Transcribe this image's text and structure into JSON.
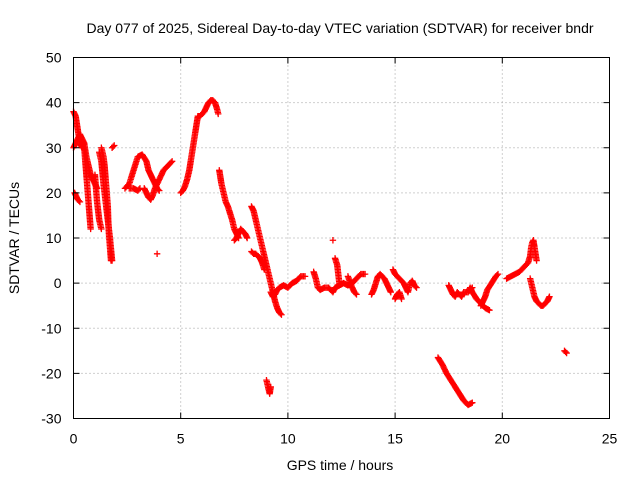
{
  "chart_data": {
    "type": "scatter",
    "title": "Day 077 of 2025, Sidereal Day-to-day VTEC variation (SDTVAR) for receiver bndr",
    "xlabel": "GPS time / hours",
    "ylabel": "SDTVAR / TECUs",
    "xlim": [
      0,
      25
    ],
    "ylim": [
      -30,
      50
    ],
    "x_ticks": [
      0,
      5,
      10,
      15,
      20,
      25
    ],
    "y_ticks": [
      -30,
      -20,
      -10,
      0,
      10,
      20,
      30,
      40,
      50
    ],
    "x_tick_labels": [
      "0",
      "5",
      "10",
      "15",
      "20",
      "25"
    ],
    "y_tick_labels": [
      "-30",
      "-20",
      "-10",
      "0",
      "10",
      "20",
      "30",
      "40",
      "50"
    ],
    "grid": true,
    "legend": "none",
    "marker": "plus",
    "color": "#ff0000",
    "series": [
      {
        "segments": [
          [
            [
              0.0,
              38
            ],
            [
              0.1,
              37
            ],
            [
              0.2,
              34
            ],
            [
              0.3,
              31
            ],
            [
              0.4,
              30
            ],
            [
              0.5,
              31
            ],
            [
              0.6,
              28
            ],
            [
              0.7,
              26
            ],
            [
              0.8,
              24
            ],
            [
              0.9,
              23
            ],
            [
              1.0,
              22
            ],
            [
              1.1,
              21
            ]
          ],
          [
            [
              0.05,
              20
            ],
            [
              0.1,
              19.5
            ],
            [
              0.2,
              18.5
            ],
            [
              0.3,
              18
            ]
          ],
          [
            [
              0.0,
              30
            ],
            [
              0.1,
              31
            ],
            [
              0.2,
              32
            ],
            [
              0.3,
              33
            ],
            [
              0.4,
              32
            ],
            [
              0.5,
              31
            ]
          ],
          [
            [
              0.5,
              30
            ],
            [
              0.55,
              27
            ],
            [
              0.6,
              24
            ],
            [
              0.65,
              21
            ],
            [
              0.7,
              18
            ],
            [
              0.75,
              15
            ],
            [
              0.8,
              12
            ]
          ],
          [
            [
              1.0,
              24
            ],
            [
              1.05,
              21
            ],
            [
              1.1,
              18
            ],
            [
              1.15,
              16
            ],
            [
              1.2,
              14
            ],
            [
              1.3,
              12
            ]
          ],
          [
            [
              1.3,
              30
            ],
            [
              1.35,
              29
            ],
            [
              1.4,
              28
            ],
            [
              1.45,
              26
            ],
            [
              1.5,
              23
            ],
            [
              1.55,
              20
            ],
            [
              1.6,
              17
            ],
            [
              1.62,
              14
            ],
            [
              1.65,
              11
            ],
            [
              1.7,
              8
            ],
            [
              1.75,
              5
            ]
          ],
          [
            [
              1.2,
              29
            ],
            [
              1.3,
              27
            ],
            [
              1.4,
              22
            ],
            [
              1.5,
              18
            ],
            [
              1.6,
              14
            ],
            [
              1.7,
              10
            ],
            [
              1.8,
              5
            ]
          ],
          [
            [
              1.8,
              30
            ],
            [
              1.9,
              30.5
            ]
          ],
          [
            [
              2.4,
              21
            ],
            [
              2.6,
              22
            ],
            [
              2.8,
              25
            ],
            [
              3.0,
              28
            ],
            [
              3.2,
              28.5
            ],
            [
              3.4,
              27
            ],
            [
              3.5,
              25
            ],
            [
              3.6,
              24
            ],
            [
              3.7,
              23
            ],
            [
              3.8,
              22
            ],
            [
              3.9,
              21
            ],
            [
              4.0,
              20.5
            ]
          ],
          [
            [
              2.6,
              21
            ],
            [
              2.8,
              21
            ],
            [
              3.0,
              20.5
            ],
            [
              3.1,
              21
            ]
          ],
          [
            [
              3.3,
              21
            ],
            [
              3.4,
              20
            ],
            [
              3.5,
              19
            ],
            [
              3.6,
              18.5
            ],
            [
              3.7,
              19.5
            ],
            [
              3.8,
              21
            ],
            [
              4.0,
              23
            ],
            [
              4.2,
              25
            ],
            [
              4.4,
              26
            ],
            [
              4.6,
              27
            ]
          ],
          [
            [
              3.9,
              6.5
            ]
          ],
          [
            [
              5.0,
              20
            ],
            [
              5.1,
              20.5
            ],
            [
              5.2,
              21.5
            ],
            [
              5.3,
              23
            ],
            [
              5.4,
              25
            ],
            [
              5.5,
              28
            ],
            [
              5.6,
              31
            ],
            [
              5.7,
              34
            ],
            [
              5.8,
              37
            ],
            [
              5.9,
              37
            ],
            [
              6.0,
              37.5
            ],
            [
              6.1,
              38
            ],
            [
              6.2,
              39
            ],
            [
              6.3,
              40
            ],
            [
              6.4,
              40.5
            ],
            [
              6.5,
              40.5
            ],
            [
              6.6,
              40
            ],
            [
              6.7,
              38.5
            ],
            [
              6.75,
              37.5
            ]
          ],
          [
            [
              6.8,
              25
            ],
            [
              6.85,
              23.5
            ],
            [
              6.9,
              22
            ],
            [
              7.0,
              20
            ],
            [
              7.1,
              18
            ],
            [
              7.2,
              17
            ],
            [
              7.3,
              15.5
            ],
            [
              7.4,
              14
            ],
            [
              7.5,
              12
            ],
            [
              7.6,
              11
            ],
            [
              7.7,
              10
            ]
          ],
          [
            [
              7.5,
              9.5
            ],
            [
              7.6,
              10
            ],
            [
              7.7,
              11
            ],
            [
              7.8,
              12
            ],
            [
              7.9,
              11.5
            ],
            [
              8.0,
              11
            ],
            [
              8.1,
              10
            ]
          ],
          [
            [
              8.3,
              17
            ],
            [
              8.4,
              16
            ],
            [
              8.5,
              14
            ],
            [
              8.6,
              12
            ],
            [
              8.7,
              10
            ],
            [
              8.8,
              8
            ],
            [
              8.9,
              6
            ],
            [
              9.0,
              4
            ],
            [
              9.1,
              2
            ],
            [
              9.2,
              0
            ],
            [
              9.3,
              -2
            ],
            [
              9.4,
              -4
            ],
            [
              9.5,
              -5.5
            ],
            [
              9.6,
              -6.5
            ],
            [
              9.7,
              -7
            ]
          ],
          [
            [
              8.3,
              7
            ],
            [
              8.4,
              6.5
            ],
            [
              8.5,
              6.5
            ],
            [
              8.6,
              6
            ],
            [
              8.7,
              5.5
            ],
            [
              8.8,
              4.5
            ],
            [
              8.9,
              3
            ]
          ],
          [
            [
              9.2,
              -2
            ],
            [
              9.3,
              -3
            ],
            [
              9.4,
              -2.5
            ],
            [
              9.5,
              -1.5
            ],
            [
              9.6,
              -1
            ],
            [
              9.8,
              -0.5
            ],
            [
              10.0,
              -1
            ],
            [
              10.2,
              0
            ],
            [
              10.4,
              0.5
            ],
            [
              10.6,
              1.5
            ],
            [
              10.8,
              1.5
            ]
          ],
          [
            [
              9.0,
              -21.5
            ],
            [
              9.05,
              -22.5
            ],
            [
              9.1,
              -23.5
            ],
            [
              9.15,
              -24.5
            ],
            [
              9.2,
              -23
            ]
          ],
          [
            [
              11.2,
              2.5
            ],
            [
              11.3,
              1
            ],
            [
              11.4,
              -1
            ],
            [
              11.5,
              -1.5
            ],
            [
              11.7,
              -1
            ],
            [
              11.9,
              -1
            ],
            [
              12.1,
              -2
            ],
            [
              12.2,
              -1
            ],
            [
              12.4,
              -0.5
            ],
            [
              12.6,
              0
            ],
            [
              12.8,
              -0.5
            ],
            [
              13.0,
              0
            ],
            [
              13.2,
              1
            ],
            [
              13.4,
              2
            ],
            [
              13.6,
              2
            ]
          ],
          [
            [
              12.1,
              9.5
            ]
          ],
          [
            [
              12.2,
              5.5
            ],
            [
              12.3,
              4
            ],
            [
              12.35,
              2
            ],
            [
              12.4,
              0
            ]
          ],
          [
            [
              12.8,
              1.5
            ],
            [
              13.0,
              -1
            ],
            [
              13.1,
              -2
            ],
            [
              13.2,
              -2.5
            ]
          ],
          [
            [
              13.9,
              -2.5
            ],
            [
              14.0,
              -1.5
            ],
            [
              14.1,
              0
            ],
            [
              14.2,
              1.5
            ],
            [
              14.3,
              2
            ],
            [
              14.4,
              1.5
            ],
            [
              14.5,
              1
            ],
            [
              14.6,
              0
            ],
            [
              14.7,
              -1
            ],
            [
              14.8,
              -2
            ]
          ],
          [
            [
              14.9,
              3
            ],
            [
              15.0,
              2
            ],
            [
              15.2,
              1
            ],
            [
              15.4,
              0
            ],
            [
              15.5,
              -1
            ],
            [
              15.6,
              -2
            ],
            [
              15.7,
              0
            ],
            [
              15.8,
              0.5
            ],
            [
              15.9,
              -0.5
            ],
            [
              16.0,
              -1
            ]
          ],
          [
            [
              15.0,
              -3.5
            ],
            [
              15.1,
              -2.5
            ],
            [
              15.2,
              -2
            ],
            [
              15.3,
              -3.5
            ]
          ],
          [
            [
              17.0,
              -16.5
            ],
            [
              17.2,
              -18
            ],
            [
              17.4,
              -20
            ],
            [
              17.6,
              -21.5
            ],
            [
              17.8,
              -23
            ],
            [
              18.0,
              -24.5
            ],
            [
              18.2,
              -26
            ],
            [
              18.4,
              -27
            ],
            [
              18.6,
              -26.5
            ]
          ],
          [
            [
              17.5,
              -0.5
            ],
            [
              17.6,
              -1.5
            ],
            [
              17.7,
              -2.5
            ],
            [
              17.8,
              -3
            ],
            [
              17.9,
              -2
            ],
            [
              18.0,
              -2.5
            ],
            [
              18.1,
              -3
            ],
            [
              18.2,
              -2
            ],
            [
              18.4,
              -2
            ],
            [
              18.5,
              -1
            ],
            [
              18.6,
              -2
            ],
            [
              18.8,
              -3.5
            ],
            [
              19.0,
              -4.5
            ],
            [
              19.2,
              -5.5
            ],
            [
              19.4,
              -6
            ]
          ],
          [
            [
              18.4,
              -2
            ],
            [
              18.5,
              -1.5
            ],
            [
              18.6,
              -1
            ]
          ],
          [
            [
              19.0,
              -5
            ],
            [
              19.1,
              -4
            ],
            [
              19.2,
              -3
            ],
            [
              19.3,
              -1.5
            ],
            [
              19.5,
              0
            ],
            [
              19.7,
              1.5
            ],
            [
              19.8,
              2
            ]
          ],
          [
            [
              20.2,
              1
            ],
            [
              20.4,
              1.5
            ],
            [
              20.6,
              2
            ],
            [
              20.8,
              2.5
            ],
            [
              20.9,
              3
            ],
            [
              21.0,
              3.5
            ],
            [
              21.1,
              4
            ],
            [
              21.2,
              4.5
            ],
            [
              21.3,
              6
            ],
            [
              21.35,
              8
            ],
            [
              21.4,
              9
            ],
            [
              21.45,
              9.5
            ],
            [
              21.5,
              8
            ],
            [
              21.6,
              5
            ]
          ],
          [
            [
              21.3,
              1
            ],
            [
              21.4,
              -1
            ],
            [
              21.5,
              -3
            ],
            [
              21.6,
              -4
            ],
            [
              21.7,
              -4.5
            ],
            [
              21.8,
              -5
            ],
            [
              21.9,
              -5
            ],
            [
              22.0,
              -4.5
            ],
            [
              22.1,
              -4
            ],
            [
              22.2,
              -3
            ]
          ],
          [
            [
              22.9,
              -15
            ],
            [
              23.0,
              -15.5
            ]
          ]
        ]
      }
    ]
  }
}
